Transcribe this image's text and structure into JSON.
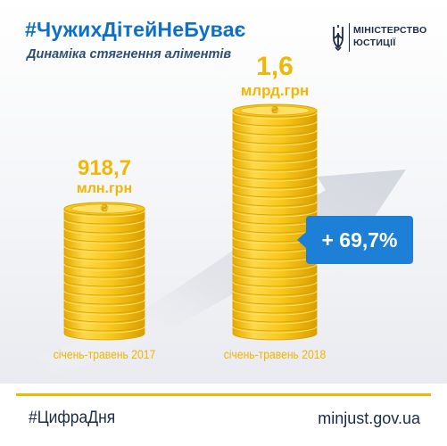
{
  "header": {
    "hashtag": "#ЧужихДітейНеБуває",
    "subtitle": "Динаміка стягнення аліментів"
  },
  "logo": {
    "line1": "МІНІСТЕРСТВО",
    "line2": "ЮСТИЦІЇ",
    "emblem": "trident-icon"
  },
  "chart_data": {
    "type": "bar",
    "title": "Динаміка стягнення аліментів",
    "categories": [
      "січень-травень 2017",
      "січень-травень 2018"
    ],
    "values": [
      918.7,
      1600
    ],
    "value_labels": [
      {
        "number": "918,7",
        "unit": "млн.грн"
      },
      {
        "number": "1,6",
        "unit": "млрд.грн"
      }
    ],
    "unit": "млн.грн",
    "growth_label": "+ 69,7%",
    "bar_style": "coin-stack",
    "colors": {
      "coin": "#f5c518",
      "coin_dark": "#d9a400",
      "coin_light": "#ffe066",
      "accent": "#f2b705",
      "badge": "#1e7fd6"
    },
    "grid": false,
    "legend": "none"
  },
  "footer": {
    "tag": "#ЦифраДня",
    "url": "minjust.gov.ua"
  },
  "coin_symbol": "₴"
}
